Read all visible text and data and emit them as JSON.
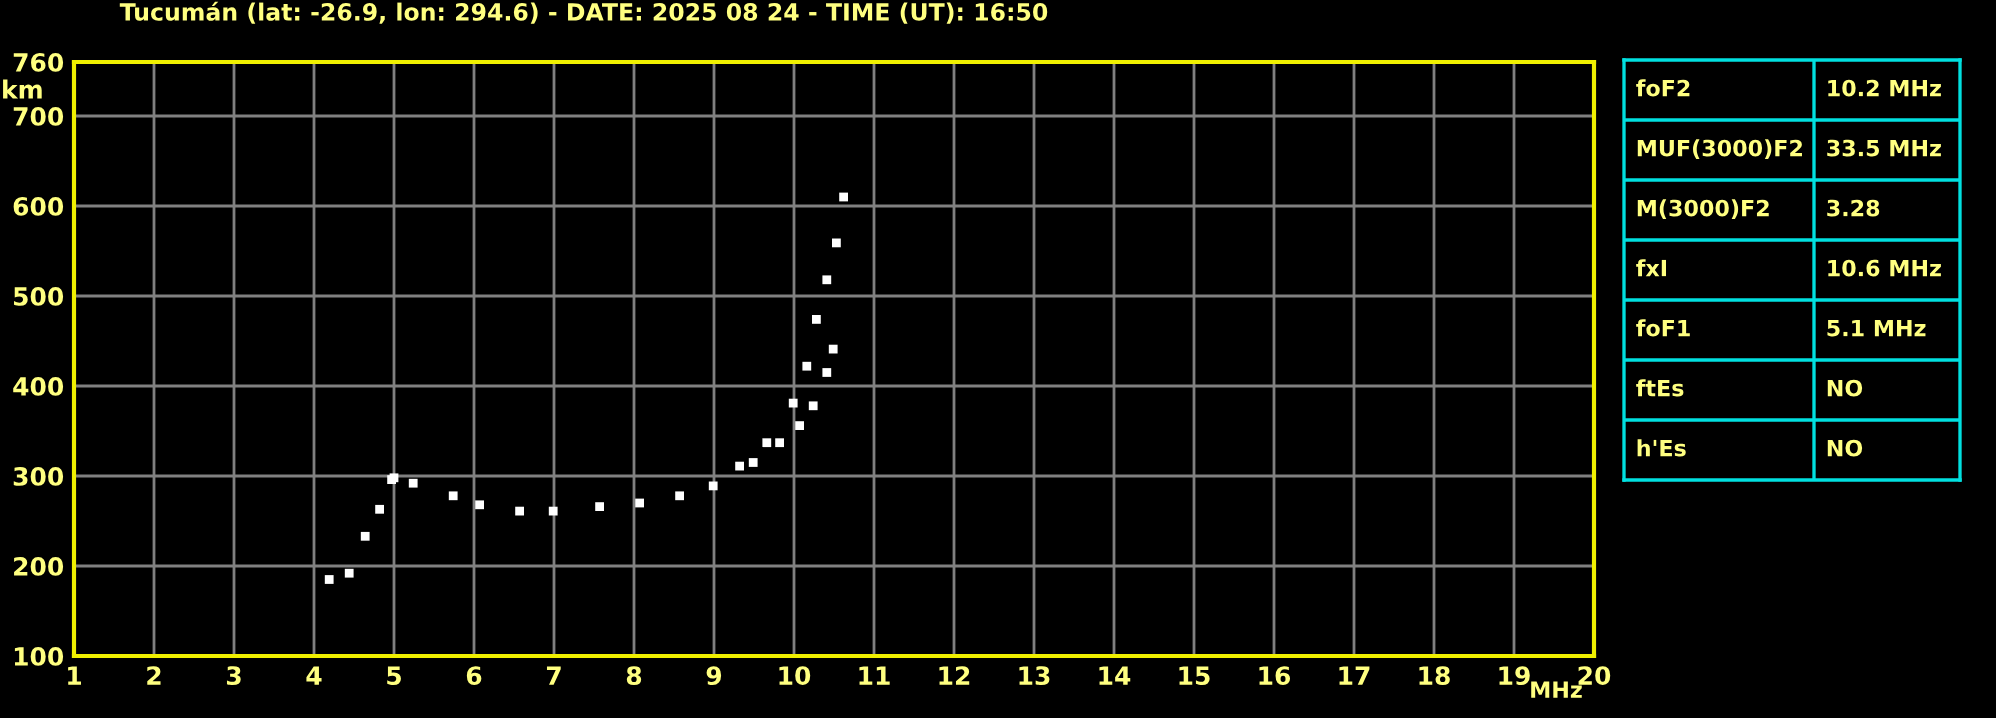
{
  "chart_data": [
    {
      "type": "scatter",
      "title": "Tucumán (lat: -26.9, lon: 294.6) - DATE: 2025 08 24 - TIME (UT): 16:50",
      "xlabel": "MHz",
      "ylabel": "km",
      "xlim": [
        1,
        20
      ],
      "ylim": [
        100,
        760
      ],
      "xticks": [
        1,
        2,
        3,
        4,
        5,
        6,
        7,
        8,
        9,
        10,
        11,
        12,
        13,
        14,
        15,
        16,
        17,
        18,
        19,
        20
      ],
      "yticks": [
        100,
        200,
        300,
        400,
        500,
        600,
        700,
        760
      ],
      "grid": true,
      "legend": false,
      "marker": "square",
      "series": [
        {
          "color": "#ffffff",
          "x": [
            4.19,
            4.44,
            4.64,
            4.82,
            4.97,
            5.0,
            5.24,
            5.74,
            6.07,
            6.57,
            6.99,
            7.57,
            8.07,
            8.57,
            8.99,
            9.32,
            9.66,
            9.99,
            10.16,
            10.28,
            10.41,
            10.53,
            10.62
          ],
          "values": [
            185,
            192,
            233,
            263,
            296,
            298,
            292,
            278,
            268,
            261,
            261,
            266,
            270,
            278,
            289,
            311,
            337,
            381,
            422,
            474,
            518,
            559,
            610
          ]
        },
        {
          "color": "#ffffff",
          "x": [
            9.49,
            9.82,
            10.07,
            10.24,
            10.41,
            10.49
          ],
          "values": [
            315,
            337,
            356,
            378,
            415,
            441
          ]
        }
      ]
    },
    {
      "type": "other",
      "annotations": [
        "foF2",
        "10.2 MHz",
        "MUF(3000)F2",
        "33.5 MHz",
        "M(3000)F2",
        "3.28",
        "fxI",
        "10.6 MHz",
        "foF1",
        "5.1 MHz",
        "ftEs",
        "NO",
        "h'Es",
        "NO"
      ]
    }
  ]
}
